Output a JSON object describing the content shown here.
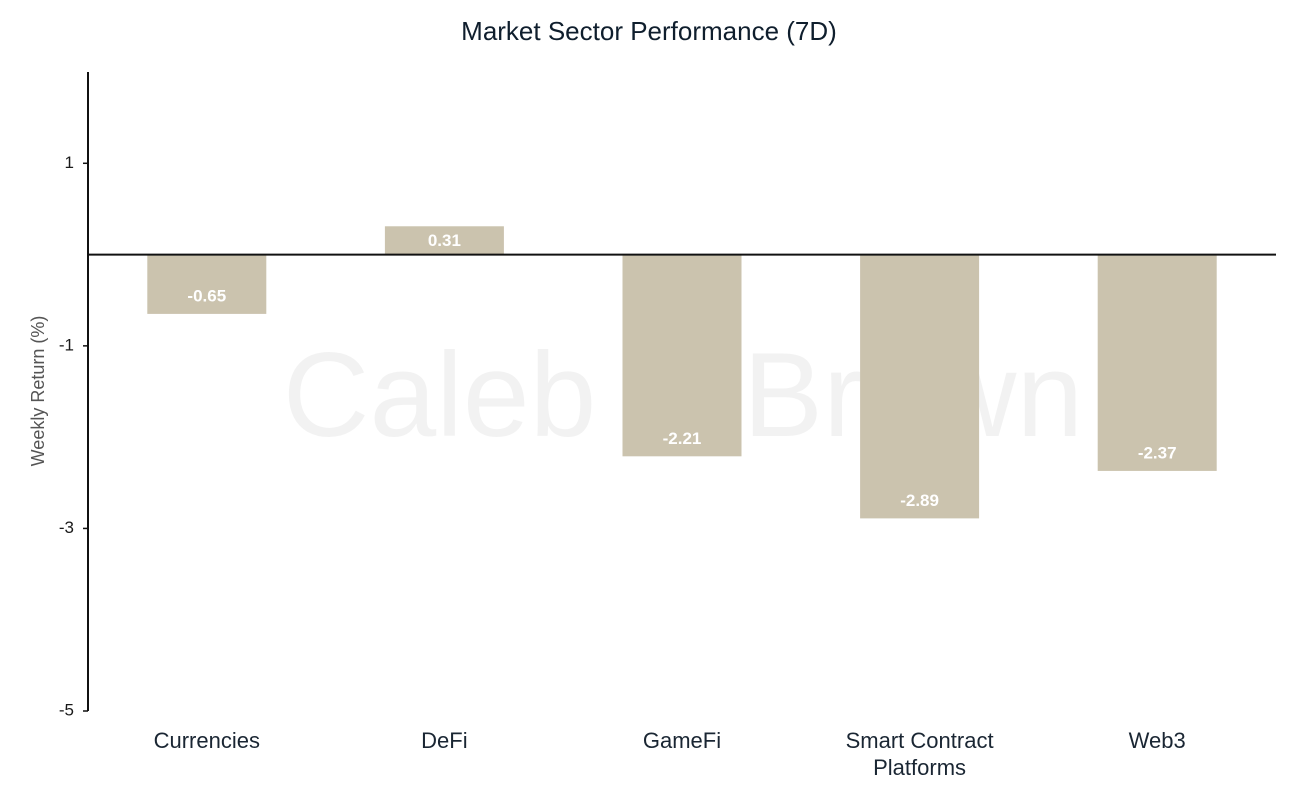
{
  "colors": {
    "bar": "#cbc3ae",
    "axis": "#111111",
    "bar_label": "#ffffff"
  },
  "watermark": "Caleb & Brown",
  "chart_data": {
    "type": "bar",
    "title": "Market Sector Performance (7D)",
    "xlabel": "",
    "ylabel": "Weekly  Return (%)",
    "categories": [
      "Currencies",
      "DeFi",
      "GameFi",
      "Smart Contract Platforms",
      "Web3"
    ],
    "category_lines": [
      [
        "Currencies"
      ],
      [
        "DeFi"
      ],
      [
        "GameFi"
      ],
      [
        "Smart Contract",
        "Platforms"
      ],
      [
        "Web3"
      ]
    ],
    "values": [
      -0.65,
      0.31,
      -2.21,
      -2.89,
      -2.37
    ],
    "value_labels": [
      "-0.65",
      "0.31",
      "-2.21",
      "-2.89",
      "-2.37"
    ],
    "yticks": [
      1,
      -1,
      -3,
      -5
    ],
    "ytick_labels": [
      "1",
      "-1",
      "-3",
      "-5"
    ],
    "ylim": [
      -5,
      2
    ],
    "grid": false
  }
}
